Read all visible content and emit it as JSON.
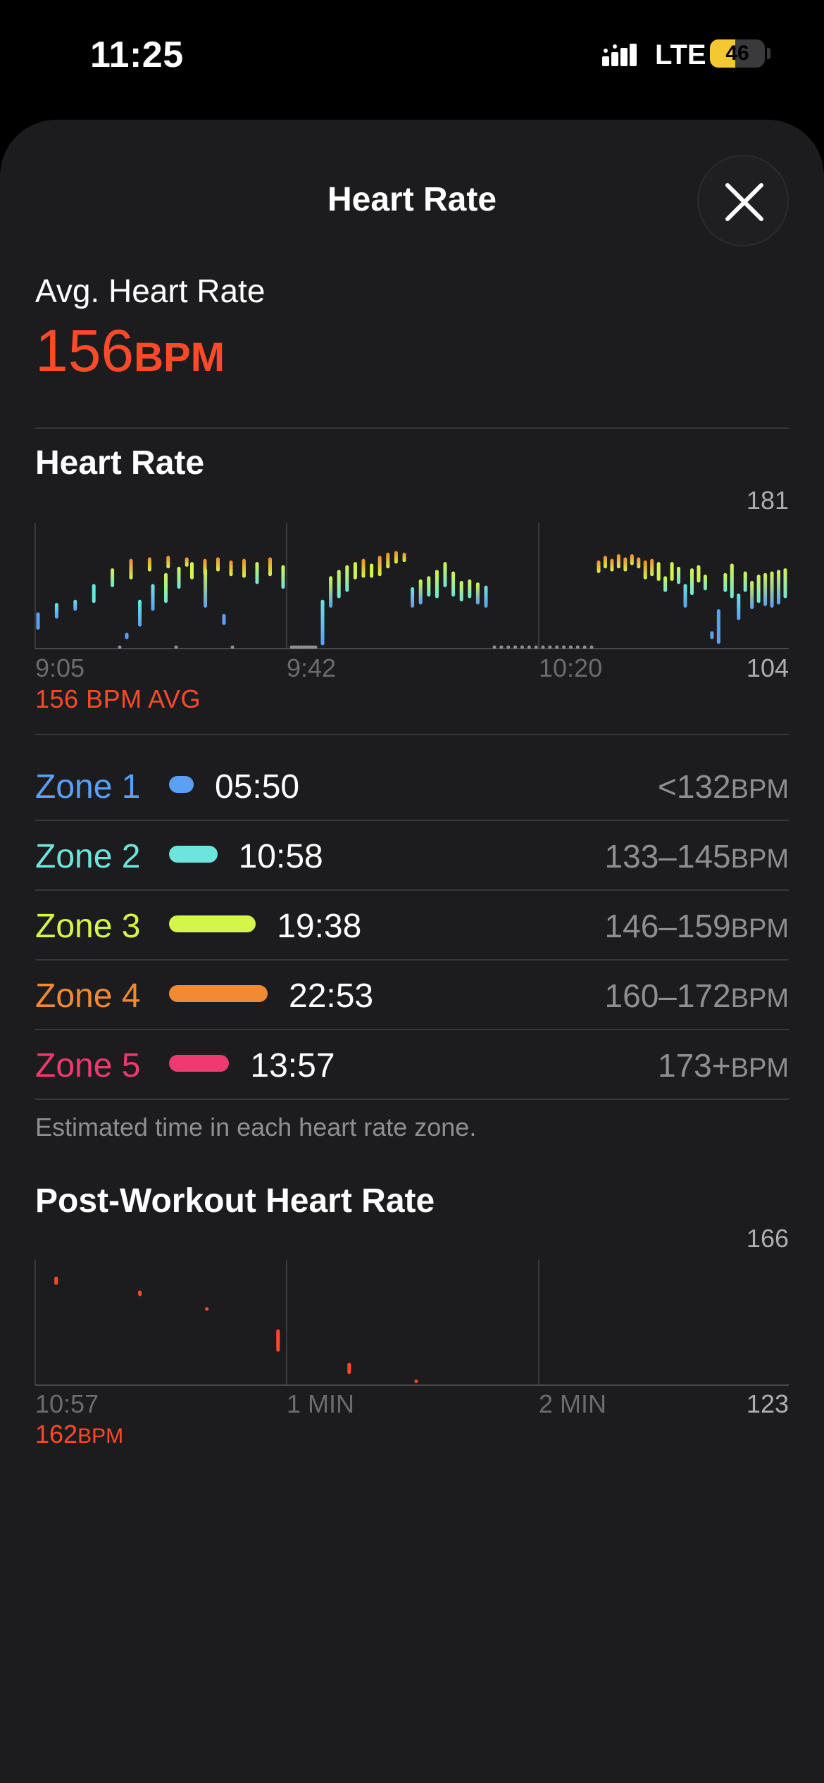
{
  "status": {
    "time": "11:25",
    "network": "LTE",
    "battery": "46",
    "battery_level": 0.46
  },
  "sheet": {
    "title": "Heart Rate"
  },
  "summary": {
    "label": "Avg. Heart Rate",
    "value": "156",
    "unit": "BPM"
  },
  "heart_rate_section": {
    "title": "Heart Rate",
    "y_max_label": "181",
    "y_min_label": "104",
    "x_labels": [
      "9:05",
      "9:42",
      "10:20"
    ],
    "avg_caption": "156 BPM AVG"
  },
  "zones": [
    {
      "name": "Zone 1",
      "time": "05:50",
      "range": "<132",
      "unit": "BPM",
      "color": "#5aa0f5",
      "bar_fraction": 0.25
    },
    {
      "name": "Zone 2",
      "time": "10:58",
      "range": "133–145",
      "unit": "BPM",
      "color": "#6ee5dc",
      "bar_fraction": 0.49
    },
    {
      "name": "Zone 3",
      "time": "19:38",
      "range": "146–159",
      "unit": "BPM",
      "color": "#d4f64a",
      "bar_fraction": 0.88
    },
    {
      "name": "Zone 4",
      "time": "22:53",
      "range": "160–172",
      "unit": "BPM",
      "color": "#f28a33",
      "bar_fraction": 1.0
    },
    {
      "name": "Zone 5",
      "time": "13:57",
      "range": "173+",
      "unit": "BPM",
      "color": "#ee3a6f",
      "bar_fraction": 0.61
    }
  ],
  "zones_footnote": "Estimated time in each heart rate zone.",
  "post_workout": {
    "title": "Post-Workout Heart Rate",
    "y_max_label": "166",
    "y_min_label": "123",
    "x_labels": [
      "10:57",
      "1 MIN",
      "2 MIN"
    ],
    "caption_value": "162",
    "caption_unit": "BPM"
  },
  "chart_data": [
    {
      "type": "bar",
      "title": "Heart Rate",
      "xlabel": "",
      "ylabel": "",
      "ylim": [
        104,
        181
      ],
      "x_ticks": [
        "9:05",
        "9:42",
        "10:20"
      ],
      "segments": [
        {
          "bars": [
            [
              116,
              127
            ],
            [
              123,
              133
            ],
            [
              128,
              135
            ],
            [
              133,
              145
            ],
            [
              143,
              155
            ],
            [
              148,
              161
            ],
            [
              153,
              162
            ],
            [
              155,
              163
            ],
            [
              156,
              162
            ],
            [
              130,
              155
            ],
            [
              119,
              126
            ]
          ],
          "gap_dots_after": 3
        },
        {
          "bars": [
            [
              110,
              114
            ],
            [
              118,
              135
            ],
            [
              128,
              145
            ],
            [
              133,
              152
            ],
            [
              142,
              156
            ],
            [
              148,
              159
            ],
            [
              151,
              161
            ],
            [
              153,
              162
            ],
            [
              150,
              160
            ],
            [
              149,
              161
            ],
            [
              145,
              159
            ],
            [
              150,
              162
            ],
            [
              142,
              157
            ]
          ],
          "gap_dots_after": 11
        },
        {
          "bars": [
            [
              106,
              135
            ],
            [
              130,
              150
            ],
            [
              136,
              154
            ],
            [
              140,
              157
            ],
            [
              148,
              159
            ],
            [
              149,
              161
            ],
            [
              149,
              158
            ],
            [
              150,
              163
            ],
            [
              155,
              165
            ],
            [
              158,
              166
            ],
            [
              159,
              165
            ],
            [
              130,
              143
            ],
            [
              132,
              148
            ],
            [
              137,
              150
            ],
            [
              136,
              154
            ],
            [
              143,
              159
            ],
            [
              137,
              153
            ],
            [
              134,
              147
            ],
            [
              136,
              148
            ],
            [
              132,
              146
            ],
            [
              130,
              144
            ]
          ],
          "gap_dots_after": 15
        },
        {
          "bars": [
            [
              152,
              160
            ],
            [
              155,
              163
            ],
            [
              153,
              161
            ],
            [
              155,
              164
            ],
            [
              153,
              162
            ],
            [
              157,
              164
            ],
            [
              155,
              162
            ],
            [
              148,
              160
            ],
            [
              150,
              161
            ],
            [
              147,
              159
            ],
            [
              140,
              150
            ],
            [
              147,
              159
            ],
            [
              145,
              156
            ],
            [
              130,
              145
            ],
            [
              138,
              155
            ],
            [
              146,
              157
            ],
            [
              141,
              151
            ],
            [
              110,
              115
            ],
            [
              107,
              129
            ],
            [
              140,
              152
            ],
            [
              136,
              158
            ],
            [
              122,
              139
            ],
            [
              140,
              153
            ],
            [
              129,
              147
            ],
            [
              133,
              151
            ],
            [
              131,
              152
            ],
            [
              130,
              153
            ],
            [
              132,
              154
            ],
            [
              136,
              155
            ]
          ]
        }
      ]
    },
    {
      "type": "bar",
      "title": "Post-Workout Heart Rate",
      "xlabel": "",
      "ylabel": "",
      "ylim": [
        123,
        166
      ],
      "x_ticks": [
        "10:57",
        "1 MIN",
        "2 MIN"
      ],
      "points": [
        {
          "t_sec": 5,
          "min": 159,
          "max": 162
        },
        {
          "t_sec": 25,
          "min": 155,
          "max": 157
        },
        {
          "t_sec": 41,
          "min": 150,
          "max": 151
        },
        {
          "t_sec": 58,
          "min": 135,
          "max": 143
        },
        {
          "t_sec": 75,
          "min": 127,
          "max": 131
        },
        {
          "t_sec": 91,
          "min": 124,
          "max": 125
        }
      ]
    }
  ]
}
